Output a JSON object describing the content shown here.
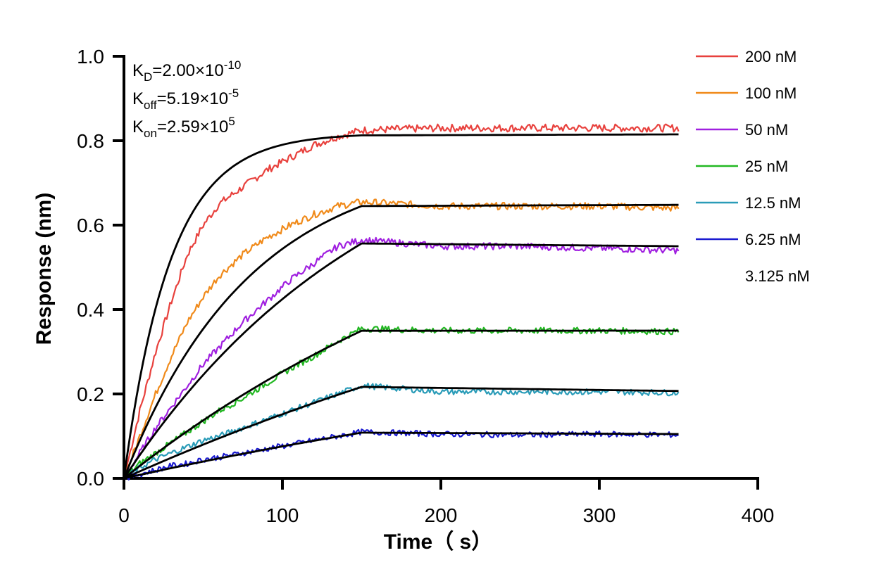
{
  "chart_data": {
    "type": "line",
    "title": "",
    "xlabel": "Time（ s）",
    "ylabel": "Response (nm)",
    "xlim": [
      0,
      400
    ],
    "ylim": [
      0,
      1.0
    ],
    "xticks": [
      "0",
      "100",
      "200",
      "300",
      "400"
    ],
    "yticks": [
      "0.0",
      "0.2",
      "0.4",
      "0.6",
      "0.8",
      "1.0"
    ],
    "grid": false,
    "legend_position": "top-right",
    "association_end": 150,
    "x_end": 350,
    "kinetics": {
      "kd": {
        "label": "K",
        "sub": "D",
        "value": "=2.00×10",
        "exp": "-10"
      },
      "koff": {
        "label": "K",
        "sub": "off",
        "value": "=5.19×10",
        "exp": "-5"
      },
      "kon": {
        "label": "K",
        "sub": "on",
        "value": "=2.59×10",
        "exp": "5"
      }
    },
    "fit_color": "#000000",
    "series": [
      {
        "name": "200 nM",
        "color": "#e8413d",
        "x": [
          0,
          10,
          20,
          30,
          40,
          50,
          60,
          75,
          90,
          105,
          120,
          135,
          150,
          200,
          250,
          300,
          350
        ],
        "y": [
          0,
          0.16,
          0.3,
          0.42,
          0.53,
          0.6,
          0.65,
          0.69,
          0.73,
          0.76,
          0.79,
          0.81,
          0.825,
          0.83,
          0.83,
          0.83,
          0.83
        ],
        "fit_y_end": 0.815,
        "fit_k": 0.034,
        "fit_plateau": 0.825
      },
      {
        "name": "100 nM",
        "color": "#f08a1a",
        "x": [
          0,
          10,
          20,
          30,
          40,
          50,
          60,
          75,
          90,
          105,
          120,
          135,
          150,
          200,
          250,
          300,
          350
        ],
        "y": [
          0,
          0.1,
          0.2,
          0.29,
          0.37,
          0.43,
          0.48,
          0.53,
          0.57,
          0.6,
          0.625,
          0.645,
          0.655,
          0.645,
          0.645,
          0.645,
          0.64
        ],
        "fit_y_end": 0.648,
        "fit_k": 0.0125,
        "fit_plateau": 0.77
      },
      {
        "name": "50 nM",
        "color": "#a020e0",
        "x": [
          0,
          10,
          20,
          30,
          40,
          50,
          60,
          75,
          90,
          105,
          120,
          135,
          150,
          200,
          250,
          300,
          350
        ],
        "y": [
          0,
          0.06,
          0.12,
          0.17,
          0.22,
          0.27,
          0.31,
          0.37,
          0.42,
          0.47,
          0.51,
          0.55,
          0.565,
          0.55,
          0.55,
          0.545,
          0.54
        ],
        "fit_y_end": 0.55,
        "fit_k": 0.0062,
        "fit_plateau": 0.9
      },
      {
        "name": "25 nM",
        "color": "#22b822",
        "x": [
          0,
          10,
          20,
          30,
          40,
          50,
          60,
          75,
          90,
          105,
          120,
          135,
          150,
          200,
          250,
          300,
          350
        ],
        "y": [
          0,
          0.035,
          0.06,
          0.085,
          0.11,
          0.135,
          0.16,
          0.19,
          0.225,
          0.26,
          0.29,
          0.325,
          0.355,
          0.35,
          0.35,
          0.35,
          0.348
        ],
        "fit_y_end": 0.35,
        "fit_k": 0.0035,
        "fit_plateau": 0.86
      },
      {
        "name": "12.5 nM",
        "color": "#2a9cb8",
        "x": [
          0,
          10,
          20,
          30,
          40,
          50,
          60,
          75,
          90,
          105,
          120,
          135,
          150,
          200,
          250,
          300,
          350
        ],
        "y": [
          0,
          0.025,
          0.045,
          0.06,
          0.075,
          0.09,
          0.1,
          0.12,
          0.14,
          0.16,
          0.18,
          0.2,
          0.22,
          0.205,
          0.205,
          0.205,
          0.203
        ],
        "fit_y_end": 0.207,
        "fit_k": 0.0021,
        "fit_plateau": 0.78
      },
      {
        "name": "6.25 nM",
        "color": "#1a1ad0",
        "x": [
          0,
          10,
          20,
          30,
          40,
          50,
          60,
          75,
          90,
          105,
          120,
          135,
          150,
          200,
          250,
          300,
          350
        ],
        "y": [
          0,
          0.01,
          0.02,
          0.03,
          0.035,
          0.045,
          0.05,
          0.06,
          0.07,
          0.08,
          0.09,
          0.1,
          0.11,
          0.105,
          0.103,
          0.105,
          0.103
        ],
        "fit_y_end": 0.105,
        "fit_k": 0.002,
        "fit_plateau": 0.42
      },
      {
        "name": "3.125 nM",
        "color": "#ffffff",
        "x": [],
        "y": []
      }
    ]
  }
}
